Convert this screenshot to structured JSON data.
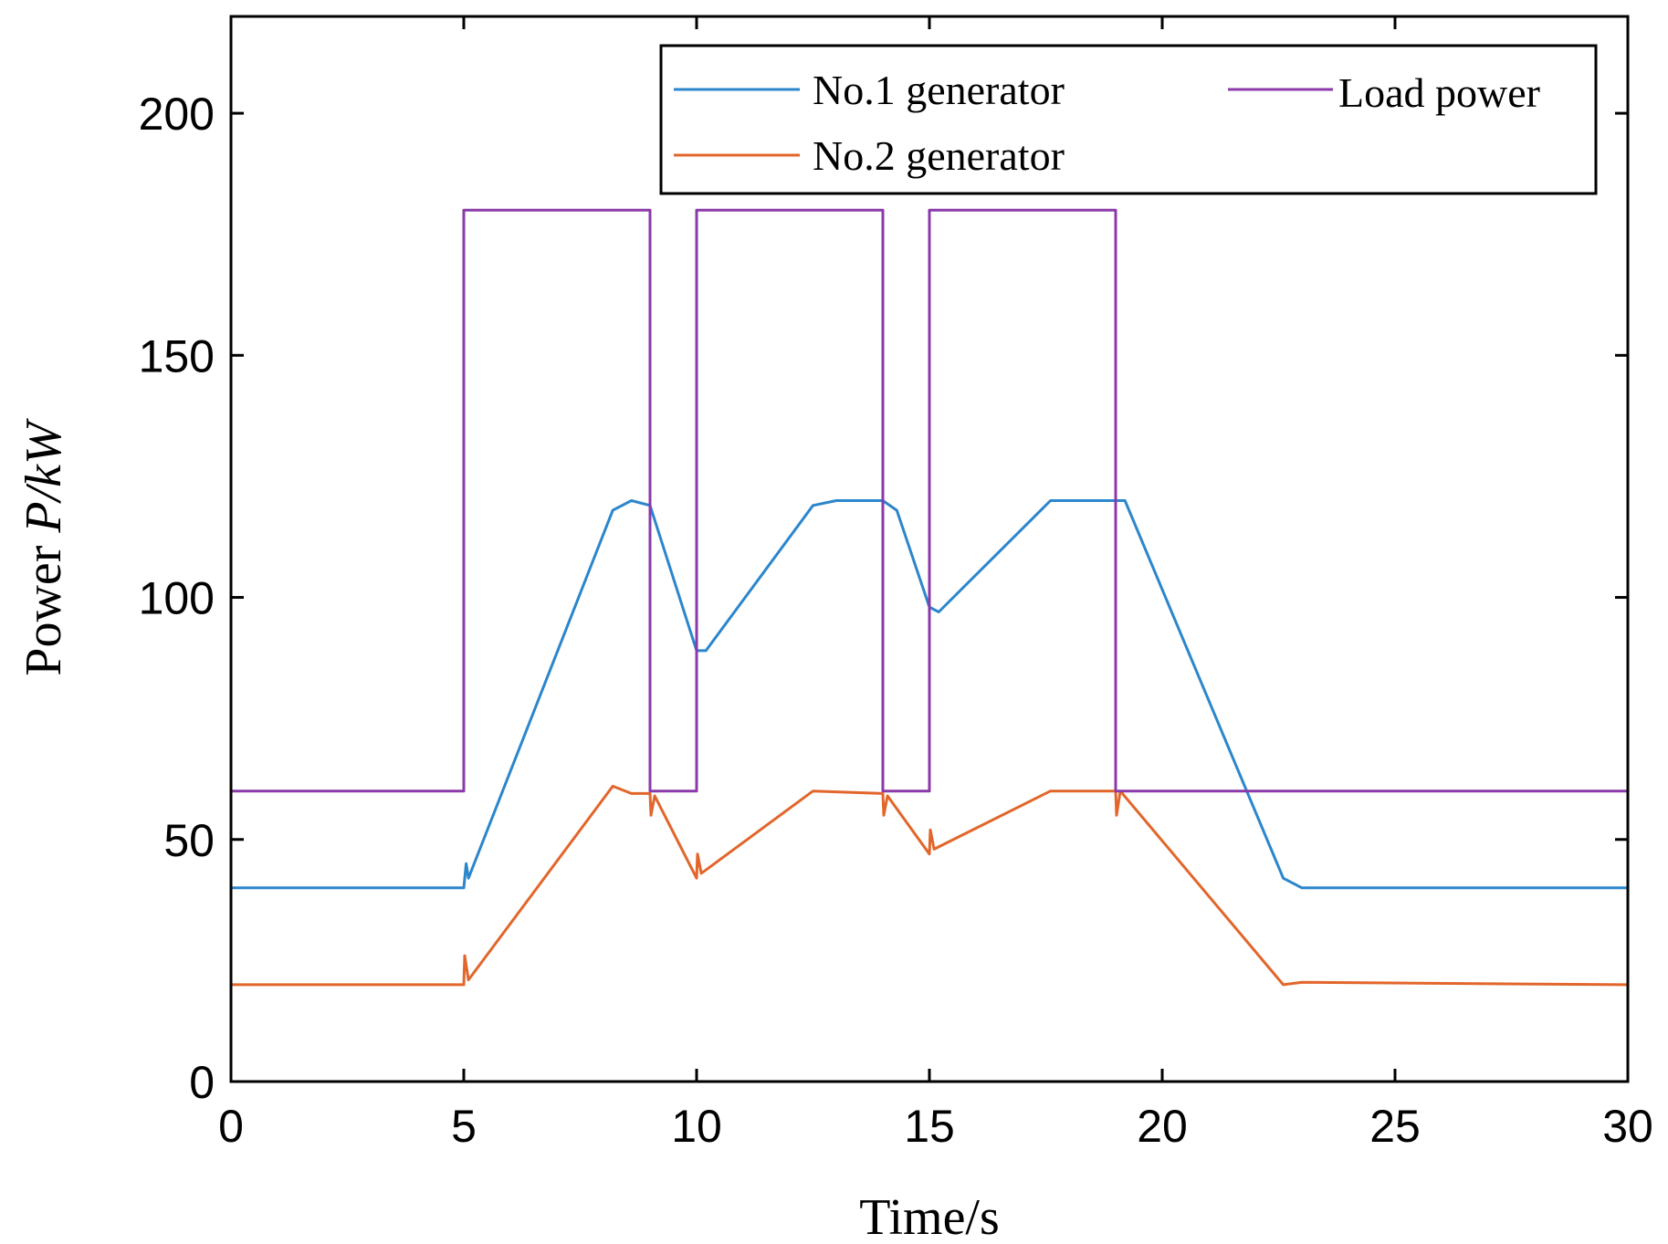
{
  "chart_data": {
    "type": "line",
    "title": "",
    "xlabel": "Time/s",
    "ylabel": {
      "prefix": "Power ",
      "symbol": "P",
      "unit": "/kW"
    },
    "xlim": [
      0,
      30
    ],
    "ylim": [
      0,
      220
    ],
    "xticks": [
      "0",
      "5",
      "10",
      "15",
      "20",
      "25",
      "30"
    ],
    "yticks": [
      "0",
      "50",
      "100",
      "150",
      "200"
    ],
    "grid": false,
    "legend_position": "top-right",
    "series": [
      {
        "name": "No.1 generator",
        "color": "#2b86cc",
        "points": [
          [
            0,
            40
          ],
          [
            5,
            40
          ],
          [
            5.05,
            45
          ],
          [
            5.1,
            42
          ],
          [
            8.2,
            118
          ],
          [
            8.6,
            120
          ],
          [
            9.0,
            119
          ],
          [
            10.0,
            89
          ],
          [
            10.2,
            89
          ],
          [
            12.5,
            119
          ],
          [
            13,
            120
          ],
          [
            14,
            120
          ],
          [
            14.3,
            118
          ],
          [
            15,
            98
          ],
          [
            15.2,
            97
          ],
          [
            17.6,
            120
          ],
          [
            18.5,
            120
          ],
          [
            19.2,
            120
          ],
          [
            22.6,
            42
          ],
          [
            23,
            40
          ],
          [
            30,
            40
          ]
        ]
      },
      {
        "name": "No.2 generator",
        "color": "#e2662b",
        "points": [
          [
            0,
            20
          ],
          [
            5,
            20
          ],
          [
            5.02,
            26
          ],
          [
            5.1,
            21
          ],
          [
            8.2,
            61
          ],
          [
            8.6,
            59.5
          ],
          [
            9.0,
            59.5
          ],
          [
            9.02,
            55
          ],
          [
            9.1,
            59
          ],
          [
            10,
            42
          ],
          [
            10.02,
            47
          ],
          [
            10.1,
            43
          ],
          [
            12.5,
            60
          ],
          [
            14,
            59.5
          ],
          [
            14.02,
            55
          ],
          [
            14.1,
            59
          ],
          [
            15,
            47
          ],
          [
            15.02,
            52
          ],
          [
            15.1,
            48
          ],
          [
            17.6,
            60
          ],
          [
            18.5,
            60
          ],
          [
            19,
            60
          ],
          [
            19.02,
            55
          ],
          [
            19.1,
            60
          ],
          [
            22.6,
            20
          ],
          [
            23,
            20.5
          ],
          [
            30,
            20
          ]
        ]
      },
      {
        "name": "Load power",
        "color": "#8a3aa8",
        "points": [
          [
            0,
            60
          ],
          [
            5,
            60
          ],
          [
            5,
            180
          ],
          [
            9,
            180
          ],
          [
            9,
            60
          ],
          [
            10,
            60
          ],
          [
            10,
            180
          ],
          [
            14,
            180
          ],
          [
            14,
            60
          ],
          [
            15,
            60
          ],
          [
            15,
            180
          ],
          [
            19,
            180
          ],
          [
            19,
            60
          ],
          [
            30,
            60
          ]
        ]
      }
    ]
  }
}
